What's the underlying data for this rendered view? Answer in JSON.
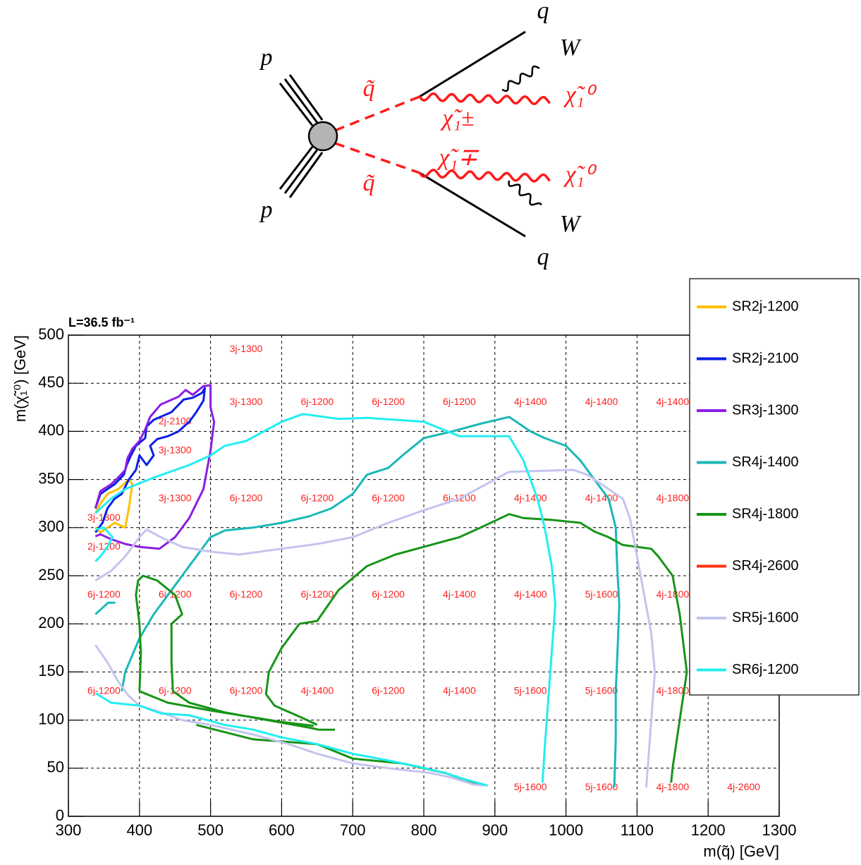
{
  "diagram": {
    "labels": [
      "p",
      "p",
      "q̃",
      "q̃",
      "χ̃₁±",
      "χ̃₁∓",
      "χ̃₁⁰",
      "χ̃₁⁰",
      "W",
      "W",
      "q",
      "q"
    ]
  },
  "chart_data": {
    "type": "line",
    "title": "L=36.5 fb⁻¹",
    "x_label": "m(q̃) [GeV]",
    "y_label": "m(χ̃₁⁰) [GeV]",
    "xlim": [
      300,
      1300
    ],
    "ylim": [
      0,
      500
    ],
    "xticks": [
      300,
      400,
      500,
      600,
      700,
      800,
      900,
      1000,
      1100,
      1200,
      1300
    ],
    "yticks": [
      0,
      50,
      100,
      150,
      200,
      250,
      300,
      350,
      400,
      450,
      500
    ],
    "grid": true,
    "legend": "right",
    "series": [
      {
        "name": "SR2j-1200",
        "color": "#ffc000",
        "x": [
          338,
          345,
          355,
          370,
          385,
          390,
          385,
          380,
          365,
          345,
          338
        ],
        "y": [
          315,
          325,
          335,
          340,
          350,
          345,
          320,
          300,
          305,
          295,
          300
        ]
      },
      {
        "name": "SR2j-2100",
        "color": "#0a1ee6",
        "x": [
          338,
          345,
          355,
          365,
          378,
          382,
          388,
          395,
          408,
          410,
          420,
          445,
          462,
          475,
          488,
          492,
          490,
          480,
          470,
          455,
          440,
          425,
          415,
          420,
          410,
          400,
          395,
          385,
          375,
          365,
          355,
          348,
          338
        ],
        "y": [
          320,
          335,
          340,
          345,
          355,
          365,
          375,
          385,
          393,
          405,
          412,
          420,
          433,
          435,
          440,
          445,
          432,
          420,
          410,
          400,
          395,
          392,
          385,
          375,
          365,
          375,
          360,
          350,
          335,
          330,
          320,
          305,
          295
        ]
      },
      {
        "name": "SR3j-1300",
        "color": "#8a1ee6",
        "x": [
          338,
          345,
          360,
          370,
          380,
          383,
          390,
          400,
          408,
          415,
          430,
          455,
          465,
          475,
          490,
          500,
          500,
          505,
          500,
          490,
          470,
          450,
          428,
          400,
          380,
          360,
          345,
          338
        ],
        "y": [
          320,
          338,
          345,
          352,
          360,
          372,
          382,
          390,
          402,
          415,
          428,
          436,
          443,
          438,
          447,
          448,
          425,
          410,
          380,
          340,
          310,
          290,
          278,
          280,
          283,
          288,
          293,
          291
        ]
      },
      {
        "name": "SR4j-1400",
        "color": "#1ab8b8",
        "x": [
          338,
          356,
          366,
          null,
          375,
          380,
          400,
          420,
          440,
          460,
          480,
          500,
          520,
          560,
          600,
          640,
          670,
          700,
          720,
          750,
          770,
          800,
          840,
          880,
          920,
          950,
          970,
          1000,
          1020,
          1040,
          1060,
          1070,
          1072,
          1075,
          1073,
          1070,
          1070,
          1068
        ],
        "y": [
          210,
          222,
          222,
          null,
          130,
          150,
          185,
          210,
          230,
          250,
          270,
          290,
          297,
          300,
          305,
          312,
          320,
          335,
          355,
          362,
          375,
          393,
          400,
          408,
          415,
          400,
          393,
          385,
          370,
          350,
          330,
          300,
          260,
          220,
          180,
          130,
          80,
          30
        ]
      },
      {
        "name": "SR4j-1800",
        "color": "#189418",
        "x": [
          400,
          402,
          400,
          395,
          398,
          405,
          425,
          450,
          460,
          445,
          445,
          447,
          470,
          520,
          580,
          640,
          652,
          675,
          null,
          400,
          440,
          500,
          550,
          600,
          645,
          null,
          650,
          630,
          590,
          578,
          582,
          600,
          625,
          650,
          680,
          720,
          760,
          800,
          850,
          880,
          920,
          940,
          980,
          1020,
          1040,
          1060,
          1080,
          1120,
          1130,
          1150,
          1160,
          1170,
          1160,
          1150,
          1148,
          null,
          480,
          560,
          650,
          700,
          770,
          830,
          850,
          880
        ],
        "y": [
          130,
          170,
          200,
          230,
          245,
          250,
          245,
          230,
          210,
          200,
          160,
          130,
          118,
          108,
          100,
          92,
          90,
          90,
          null,
          130,
          118,
          110,
          104,
          98,
          94,
          null,
          95,
          102,
          115,
          127,
          150,
          175,
          200,
          203,
          235,
          260,
          272,
          280,
          290,
          300,
          314,
          310,
          308,
          305,
          296,
          290,
          282,
          278,
          270,
          250,
          210,
          150,
          100,
          50,
          35,
          null,
          95,
          80,
          75,
          60,
          55,
          45,
          40,
          33
        ]
      },
      {
        "name": "SR4j-2600",
        "color": "#ff3010",
        "x": [],
        "y": []
      },
      {
        "name": "SR5j-1600",
        "color": "#c4c4ee",
        "x": [
          338,
          360,
          380,
          400,
          410,
          430,
          460,
          500,
          540,
          600,
          650,
          700,
          750,
          800,
          850,
          900,
          920,
          1010,
          1030,
          1060,
          1080,
          1090,
          1100,
          1110,
          1120,
          1125,
          1120,
          1115,
          1113,
          null,
          338,
          355,
          370,
          385,
          400,
          430,
          460,
          500,
          560,
          610,
          650,
          700,
          750,
          810,
          840,
          870,
          885
        ],
        "y": [
          245,
          255,
          270,
          290,
          298,
          290,
          280,
          275,
          272,
          278,
          283,
          290,
          305,
          318,
          330,
          350,
          358,
          360,
          355,
          340,
          330,
          310,
          270,
          230,
          190,
          150,
          100,
          50,
          30,
          null,
          178,
          160,
          140,
          125,
          115,
          108,
          100,
          95,
          85,
          75,
          65,
          55,
          50,
          45,
          40,
          33,
          32
        ]
      },
      {
        "name": "SR6j-1200",
        "color": "#22eef0",
        "x": [
          338,
          350,
          362,
          355,
          345,
          338,
          null,
          338,
          360,
          380,
          420,
          470,
          500,
          520,
          550,
          600,
          630,
          680,
          720,
          760,
          800,
          850,
          920,
          940,
          960,
          970,
          980,
          985,
          980,
          975,
          970,
          967,
          null,
          338,
          360,
          400,
          430,
          470,
          520,
          560,
          600,
          650,
          700,
          750,
          790,
          830,
          860,
          890
        ],
        "y": [
          298,
          300,
          290,
          280,
          270,
          265,
          null,
          315,
          330,
          340,
          352,
          365,
          375,
          385,
          390,
          410,
          418,
          413,
          414,
          412,
          410,
          395,
          395,
          370,
          330,
          300,
          260,
          220,
          170,
          120,
          70,
          35,
          null,
          128,
          118,
          115,
          107,
          105,
          95,
          90,
          82,
          75,
          65,
          58,
          52,
          45,
          38,
          32
        ]
      }
    ],
    "annotations": [
      {
        "text": "3j-1300",
        "x": 550,
        "y": 485
      },
      {
        "text": "3j-1300",
        "x": 550,
        "y": 430
      },
      {
        "text": "6j-1200",
        "x": 650,
        "y": 430
      },
      {
        "text": "6j-1200",
        "x": 750,
        "y": 430
      },
      {
        "text": "6j-1200",
        "x": 850,
        "y": 430
      },
      {
        "text": "4j-1400",
        "x": 950,
        "y": 430
      },
      {
        "text": "4j-1400",
        "x": 1050,
        "y": 430
      },
      {
        "text": "4j-1400",
        "x": 1150,
        "y": 430
      },
      {
        "text": "2j-2100",
        "x": 450,
        "y": 410
      },
      {
        "text": "3j-1300",
        "x": 450,
        "y": 380
      },
      {
        "text": "3j-1300",
        "x": 450,
        "y": 330
      },
      {
        "text": "6j-1200",
        "x": 550,
        "y": 330
      },
      {
        "text": "6j-1200",
        "x": 650,
        "y": 330
      },
      {
        "text": "6j-1200",
        "x": 750,
        "y": 330
      },
      {
        "text": "6j-1200",
        "x": 850,
        "y": 330
      },
      {
        "text": "4j-1400",
        "x": 950,
        "y": 330
      },
      {
        "text": "4j-1400",
        "x": 1050,
        "y": 330
      },
      {
        "text": "4j-1800",
        "x": 1150,
        "y": 330
      },
      {
        "text": "3j-1300",
        "x": 350,
        "y": 310
      },
      {
        "text": "2j-1200",
        "x": 350,
        "y": 280
      },
      {
        "text": "6j-1200",
        "x": 350,
        "y": 230
      },
      {
        "text": "6j-1200",
        "x": 450,
        "y": 230
      },
      {
        "text": "6j-1200",
        "x": 550,
        "y": 230
      },
      {
        "text": "6j-1200",
        "x": 650,
        "y": 230
      },
      {
        "text": "6j-1200",
        "x": 750,
        "y": 230
      },
      {
        "text": "4j-1400",
        "x": 850,
        "y": 230
      },
      {
        "text": "4j-1400",
        "x": 950,
        "y": 230
      },
      {
        "text": "5j-1600",
        "x": 1050,
        "y": 230
      },
      {
        "text": "4j-1800",
        "x": 1150,
        "y": 230
      },
      {
        "text": "6j-1200",
        "x": 350,
        "y": 130
      },
      {
        "text": "6j-1200",
        "x": 450,
        "y": 130
      },
      {
        "text": "6j-1200",
        "x": 550,
        "y": 130
      },
      {
        "text": "4j-1400",
        "x": 650,
        "y": 130
      },
      {
        "text": "6j-1200",
        "x": 750,
        "y": 130
      },
      {
        "text": "4j-1400",
        "x": 850,
        "y": 130
      },
      {
        "text": "5j-1600",
        "x": 950,
        "y": 130
      },
      {
        "text": "5j-1600",
        "x": 1050,
        "y": 130
      },
      {
        "text": "4j-1800",
        "x": 1150,
        "y": 130
      },
      {
        "text": "5j-1600",
        "x": 950,
        "y": 30
      },
      {
        "text": "5j-1600",
        "x": 1050,
        "y": 30
      },
      {
        "text": "4j-1800",
        "x": 1150,
        "y": 30
      },
      {
        "text": "4j-2600",
        "x": 1250,
        "y": 30
      }
    ]
  }
}
